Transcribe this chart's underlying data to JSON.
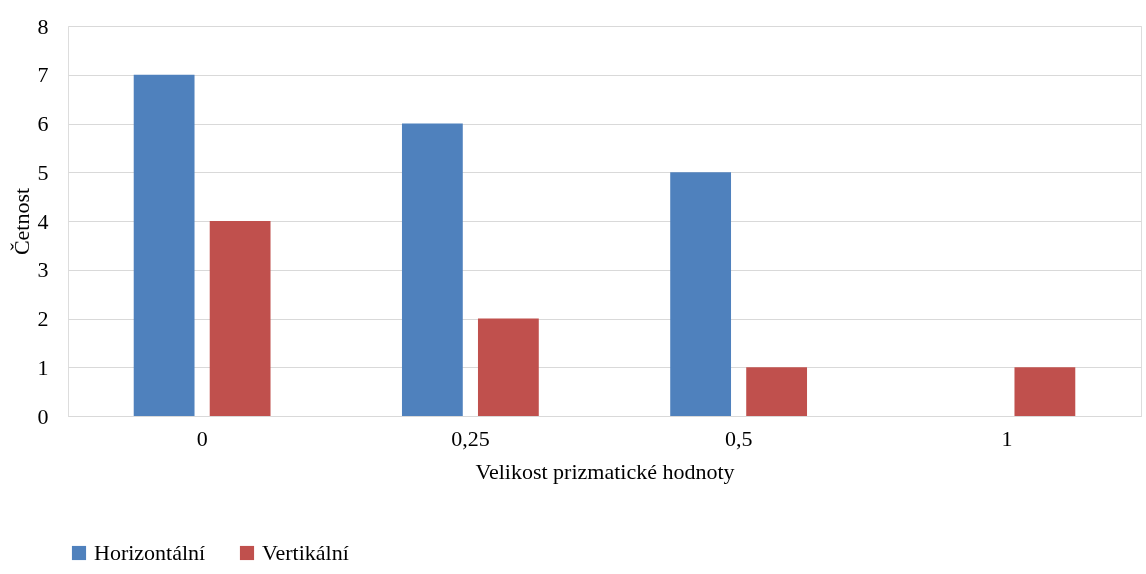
{
  "chart_data": {
    "type": "bar",
    "xlabel": "Velikost prizmatické hodnoty",
    "ylabel": "Četnost",
    "categories": [
      "0",
      "0,25",
      "0,5",
      "1"
    ],
    "series": [
      {
        "name": "Horizontální",
        "color": "#4f81bd",
        "values": [
          7,
          6,
          5,
          0
        ]
      },
      {
        "name": "Vertikální",
        "color": "#c0504d",
        "values": [
          4,
          2,
          1,
          1
        ]
      }
    ],
    "ylim": [
      0,
      8
    ],
    "yticks": [
      0,
      1,
      2,
      3,
      4,
      5,
      6,
      7,
      8
    ],
    "grid": "y",
    "legend": "bottom"
  }
}
